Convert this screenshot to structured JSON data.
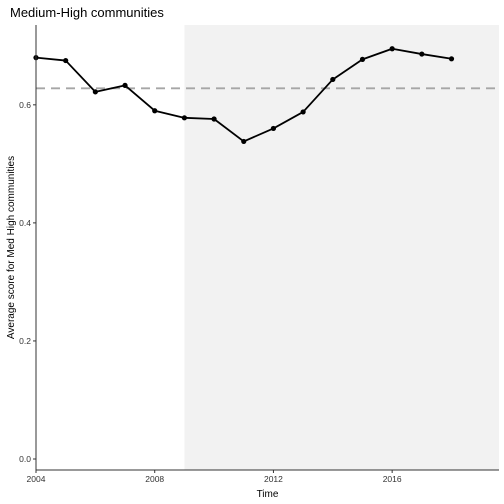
{
  "chart_data": {
    "type": "line",
    "title": "Medium-High communities",
    "xlabel": "Time",
    "ylabel": "Average score for Med High communities",
    "xlim": [
      2004,
      2019.6
    ],
    "ylim": [
      0,
      0.72
    ],
    "xticks": [
      2004,
      2008,
      2012,
      2016
    ],
    "xtick_labels": [
      "2004",
      "2008",
      "2012",
      "2016"
    ],
    "yticks": [
      0.0,
      0.2,
      0.4,
      0.6
    ],
    "ytick_labels": [
      "0.0",
      "0.2",
      "0.4",
      "0.6"
    ],
    "grid": false,
    "shaded_region": {
      "x_start": 2009,
      "x_end": 2019.6,
      "color": "#f2f2f2"
    },
    "reference_line": {
      "y": 0.628,
      "style": "dashed",
      "color": "#a6a6a6"
    },
    "series": [
      {
        "color": "#000000",
        "x": [
          2004,
          2005,
          2006,
          2007,
          2008,
          2009,
          2010,
          2011,
          2012,
          2013,
          2014,
          2015,
          2016,
          2017,
          2018
        ],
        "y": [
          0.68,
          0.675,
          0.622,
          0.633,
          0.59,
          0.578,
          0.576,
          0.538,
          0.56,
          0.588,
          0.643,
          0.677,
          0.695,
          0.686,
          0.678
        ]
      }
    ]
  }
}
